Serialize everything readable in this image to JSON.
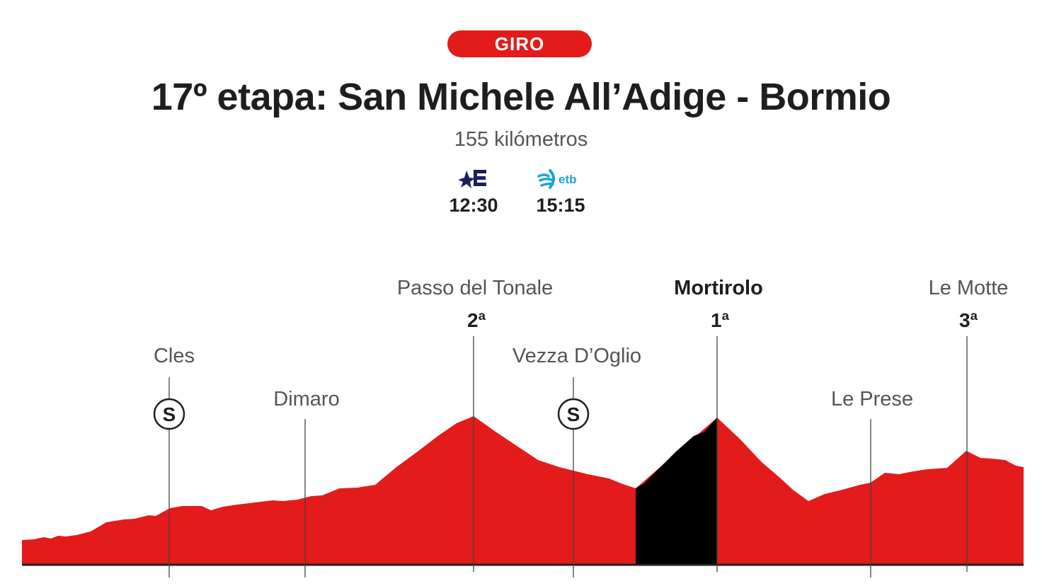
{
  "header": {
    "badge": "GIRO",
    "title": "17º etapa: San Michele All’Adige - Bormio",
    "distance": "155 kilómetros"
  },
  "broadcasters": [
    {
      "logo": "eurosport-logo",
      "time": "12:30"
    },
    {
      "logo": "etb-logo",
      "logo_text": "etb",
      "time": "15:15"
    }
  ],
  "colors": {
    "profile_fill": "#e31b1b",
    "highlight_fill": "#000000",
    "marker_line": "#444444",
    "eurosport_blue": "#1a1f5e",
    "etb_blue": "#1aa3dc"
  },
  "markers": [
    {
      "name": "Cles",
      "sprint": "S",
      "category": "",
      "bold": false
    },
    {
      "name": "Dimaro",
      "sprint": "",
      "category": "",
      "bold": false
    },
    {
      "name": "Passo del Tonale",
      "sprint": "",
      "category": "2ª",
      "bold": false
    },
    {
      "name": "Vezza D’Oglio",
      "sprint": "S",
      "category": "",
      "bold": false
    },
    {
      "name": "Mortirolo",
      "sprint": "",
      "category": "1ª",
      "bold": true
    },
    {
      "name": "Le Prese",
      "sprint": "",
      "category": "",
      "bold": false
    },
    {
      "name": "Le Motte",
      "sprint": "",
      "category": "3ª",
      "bold": false
    }
  ]
}
